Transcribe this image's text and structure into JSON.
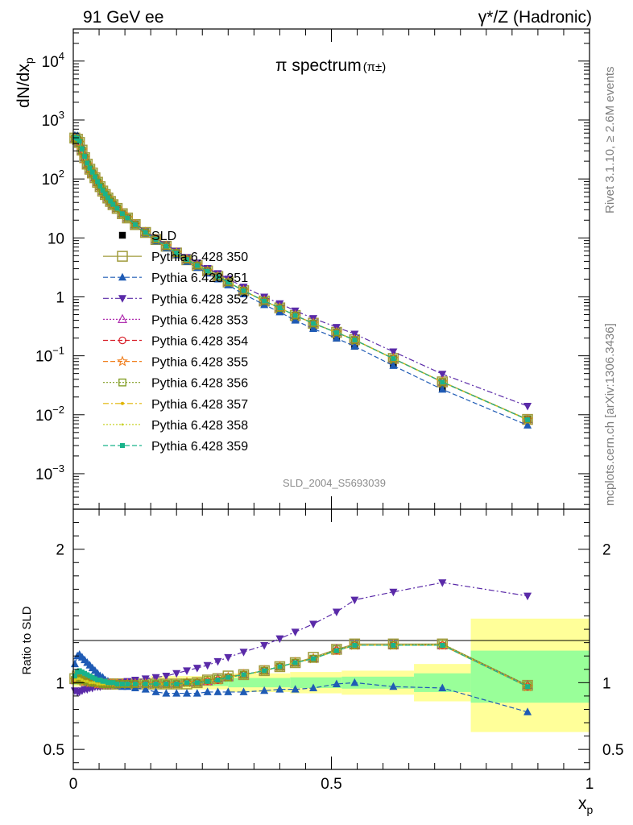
{
  "header": {
    "left": "91 GeV ee",
    "right": "γ*/Z (Hadronic)"
  },
  "side_labels": {
    "rivet": "Rivet 3.1.10, ≥ 2.6M events",
    "mcplots": "mcplots.cern.ch [arXiv:1306.3436]"
  },
  "chart_data": [
    {
      "type": "scatter",
      "title": "π spectrum",
      "title_sub": "(π±)",
      "analysis_label": "SLD_2004_S5693039",
      "ylabel_main": "dN/dx",
      "ylabel_sub": "p",
      "y_scale": "log",
      "ylim": [
        0.00025,
        35000
      ],
      "xlim": [
        0,
        1
      ],
      "y_ticks": [
        {
          "v": 10000,
          "base": "10",
          "exp": "4"
        },
        {
          "v": 1000,
          "base": "10",
          "exp": "3"
        },
        {
          "v": 100,
          "base": "10",
          "exp": "2"
        },
        {
          "v": 10,
          "base": "10",
          "exp": ""
        },
        {
          "v": 1,
          "base": "1",
          "exp": ""
        },
        {
          "v": 0.1,
          "base": "10",
          "exp": "−1"
        },
        {
          "v": 0.01,
          "base": "10",
          "exp": "−2"
        },
        {
          "v": 0.001,
          "base": "10",
          "exp": "−3"
        }
      ],
      "x": [
        0.003,
        0.008,
        0.012,
        0.017,
        0.022,
        0.027,
        0.032,
        0.037,
        0.042,
        0.047,
        0.052,
        0.057,
        0.062,
        0.067,
        0.072,
        0.077,
        0.085,
        0.095,
        0.105,
        0.12,
        0.14,
        0.16,
        0.18,
        0.2,
        0.22,
        0.24,
        0.26,
        0.28,
        0.3,
        0.33,
        0.37,
        0.4,
        0.43,
        0.465,
        0.51,
        0.545,
        0.62,
        0.715,
        0.88
      ],
      "data_y": [
        480,
        450,
        400,
        300,
        225,
        175,
        145,
        125,
        105,
        88,
        74,
        63,
        55,
        48,
        42,
        37,
        32,
        26,
        22,
        17,
        12.5,
        9.5,
        7.3,
        5.6,
        4.3,
        3.4,
        2.7,
        2.15,
        1.7,
        1.2,
        0.78,
        0.58,
        0.42,
        0.3,
        0.2,
        0.145,
        0.07,
        0.028,
        0.0085
      ],
      "series": [
        {
          "name": "SLD",
          "color": "#000000",
          "marker": "square-filled",
          "line": "none",
          "values": [
            480,
            450,
            400,
            300,
            225,
            175,
            145,
            125,
            105,
            88,
            74,
            63,
            55,
            48,
            42,
            37,
            32,
            26,
            22,
            17,
            12.5,
            9.5,
            7.3,
            5.6,
            4.3,
            3.4,
            2.7,
            2.15,
            1.7,
            1.2,
            0.78,
            0.58,
            0.42,
            0.3,
            0.2,
            0.145,
            0.07,
            0.028,
            0.0085
          ]
        },
        {
          "name": "Pythia 6.428 350",
          "color": "#a09b3c",
          "marker": "square-open-large",
          "line": "solid",
          "ratio": [
            1.03,
            1.05,
            1.04,
            1.03,
            1.02,
            1.02,
            1.01,
            1.01,
            1.0,
            1.0,
            1.0,
            0.99,
            0.99,
            0.99,
            0.99,
            0.99,
            0.99,
            0.99,
            0.99,
            0.99,
            0.99,
            0.99,
            0.99,
            0.99,
            0.99,
            1.0,
            1.02,
            1.03,
            1.05,
            1.06,
            1.09,
            1.12,
            1.15,
            1.19,
            1.25,
            1.29,
            1.29,
            1.29,
            0.98
          ]
        },
        {
          "name": "Pythia 6.428 351",
          "color": "#1f5bb5",
          "marker": "triangle-up-filled",
          "line": "dashed",
          "ratio": [
            1.14,
            1.2,
            1.21,
            1.19,
            1.17,
            1.15,
            1.13,
            1.11,
            1.09,
            1.07,
            1.05,
            1.04,
            1.02,
            1.01,
            1.0,
            0.99,
            0.98,
            0.97,
            0.97,
            0.96,
            0.95,
            0.93,
            0.92,
            0.92,
            0.92,
            0.92,
            0.93,
            0.93,
            0.93,
            0.93,
            0.94,
            0.95,
            0.95,
            0.96,
            0.99,
            1.0,
            0.97,
            0.96,
            0.78
          ]
        },
        {
          "name": "Pythia 6.428 352",
          "color": "#5a2aa8",
          "marker": "triangle-down-filled",
          "line": "dashdot",
          "ratio": [
            0.94,
            0.93,
            0.93,
            0.94,
            0.95,
            0.95,
            0.96,
            0.96,
            0.97,
            0.97,
            0.97,
            0.98,
            0.98,
            0.98,
            0.98,
            0.99,
            0.99,
            1.0,
            1.01,
            1.02,
            1.03,
            1.04,
            1.05,
            1.07,
            1.09,
            1.11,
            1.13,
            1.16,
            1.19,
            1.23,
            1.28,
            1.33,
            1.38,
            1.44,
            1.53,
            1.62,
            1.68,
            1.75,
            1.65
          ]
        },
        {
          "name": "Pythia 6.428 353",
          "color": "#b02fb0",
          "marker": "triangle-up-open",
          "line": "dotted",
          "ratio": [
            1.02,
            1.04,
            1.03,
            1.02,
            1.02,
            1.01,
            1.01,
            1.0,
            1.0,
            1.0,
            1.0,
            0.99,
            0.99,
            0.99,
            0.99,
            0.99,
            0.99,
            0.99,
            0.99,
            0.99,
            0.99,
            0.99,
            0.99,
            0.99,
            1.0,
            1.0,
            1.01,
            1.03,
            1.04,
            1.06,
            1.09,
            1.12,
            1.15,
            1.18,
            1.25,
            1.28,
            1.28,
            1.28,
            0.98
          ]
        },
        {
          "name": "Pythia 6.428 354",
          "color": "#d8202a",
          "marker": "circle-open",
          "line": "dashed",
          "ratio": [
            1.02,
            1.03,
            1.03,
            1.02,
            1.01,
            1.01,
            1.0,
            1.0,
            1.0,
            0.99,
            0.99,
            0.99,
            0.99,
            0.99,
            0.99,
            0.99,
            0.99,
            0.99,
            0.99,
            0.99,
            0.99,
            0.99,
            0.99,
            0.99,
            1.0,
            1.0,
            1.01,
            1.02,
            1.04,
            1.06,
            1.09,
            1.12,
            1.15,
            1.18,
            1.24,
            1.28,
            1.28,
            1.28,
            0.97
          ]
        },
        {
          "name": "Pythia 6.428 355",
          "color": "#f07f1e",
          "marker": "star-open",
          "line": "dashed",
          "ratio": [
            1.02,
            1.03,
            1.03,
            1.02,
            1.01,
            1.01,
            1.0,
            1.0,
            1.0,
            0.99,
            0.99,
            0.99,
            0.99,
            0.99,
            0.99,
            0.99,
            0.99,
            0.99,
            0.99,
            0.99,
            0.99,
            0.99,
            0.99,
            0.99,
            1.0,
            1.0,
            1.01,
            1.02,
            1.04,
            1.06,
            1.09,
            1.12,
            1.15,
            1.18,
            1.24,
            1.28,
            1.28,
            1.28,
            0.97
          ]
        },
        {
          "name": "Pythia 6.428 356",
          "color": "#7d9a1c",
          "marker": "square-open",
          "line": "dotted",
          "ratio": [
            1.02,
            1.04,
            1.03,
            1.02,
            1.02,
            1.01,
            1.01,
            1.0,
            1.0,
            1.0,
            1.0,
            0.99,
            0.99,
            0.99,
            0.99,
            0.99,
            0.99,
            0.99,
            0.99,
            0.99,
            0.99,
            0.99,
            0.99,
            0.99,
            1.0,
            1.0,
            1.02,
            1.03,
            1.04,
            1.06,
            1.09,
            1.12,
            1.15,
            1.18,
            1.25,
            1.28,
            1.28,
            1.29,
            0.98
          ]
        },
        {
          "name": "Pythia 6.428 357",
          "color": "#e0b400",
          "marker": "dot",
          "line": "dashdot",
          "ratio": [
            1.02,
            1.03,
            1.03,
            1.02,
            1.01,
            1.01,
            1.0,
            1.0,
            1.0,
            0.99,
            0.99,
            0.99,
            0.99,
            0.99,
            0.99,
            0.99,
            0.99,
            0.99,
            0.99,
            0.99,
            0.99,
            0.99,
            0.99,
            0.99,
            1.0,
            1.0,
            1.01,
            1.02,
            1.04,
            1.06,
            1.09,
            1.12,
            1.15,
            1.18,
            1.24,
            1.28,
            1.28,
            1.28,
            0.97
          ]
        },
        {
          "name": "Pythia 6.428 358",
          "color": "#c8d22a",
          "marker": "dot-small",
          "line": "dotted",
          "ratio": [
            1.02,
            1.03,
            1.03,
            1.02,
            1.01,
            1.01,
            1.0,
            1.0,
            1.0,
            0.99,
            0.99,
            0.99,
            0.99,
            0.99,
            0.99,
            0.99,
            0.99,
            0.99,
            0.99,
            0.99,
            0.99,
            0.99,
            0.99,
            0.99,
            1.0,
            1.0,
            1.01,
            1.02,
            1.04,
            1.06,
            1.09,
            1.12,
            1.15,
            1.18,
            1.24,
            1.28,
            1.28,
            1.28,
            0.97
          ]
        },
        {
          "name": "Pythia 6.428 359",
          "color": "#19b38a",
          "marker": "square-small",
          "line": "dashed",
          "ratio": [
            1.05,
            1.08,
            1.09,
            1.08,
            1.07,
            1.06,
            1.05,
            1.04,
            1.03,
            1.02,
            1.02,
            1.01,
            1.01,
            1.0,
            1.0,
            1.0,
            0.99,
            0.99,
            0.99,
            0.99,
            0.99,
            0.99,
            0.99,
            0.99,
            1.0,
            1.0,
            1.01,
            1.02,
            1.04,
            1.06,
            1.09,
            1.12,
            1.15,
            1.18,
            1.24,
            1.28,
            1.28,
            1.28,
            0.97
          ]
        }
      ]
    },
    {
      "type": "scatter",
      "ylabel": "Ratio to SLD",
      "xlabel_main": "x",
      "xlabel_sub": "p",
      "ylim": [
        0.35,
        2.3
      ],
      "xlim": [
        0,
        1
      ],
      "y_tick_labels": [
        {
          "v": 0.5,
          "label": "0.5"
        },
        {
          "v": 1,
          "label": "1"
        },
        {
          "v": 2,
          "label": "2"
        }
      ],
      "x_tick_labels": [
        {
          "v": 0,
          "label": "0"
        },
        {
          "v": 0.5,
          "label": "0.5"
        },
        {
          "v": 1,
          "label": "1"
        }
      ],
      "uncertainty_bands": [
        {
          "x0": 0.0,
          "x1": 0.15,
          "stat": [
            0.985,
            1.015
          ],
          "total": [
            0.97,
            1.03
          ]
        },
        {
          "x0": 0.15,
          "x1": 0.3,
          "stat": [
            0.975,
            1.025
          ],
          "total": [
            0.95,
            1.05
          ]
        },
        {
          "x0": 0.3,
          "x1": 0.42,
          "stat": [
            0.965,
            1.035
          ],
          "total": [
            0.93,
            1.07
          ]
        },
        {
          "x0": 0.42,
          "x1": 0.52,
          "stat": [
            0.96,
            1.04
          ],
          "total": [
            0.92,
            1.08
          ]
        },
        {
          "x0": 0.52,
          "x1": 0.66,
          "stat": [
            0.955,
            1.045
          ],
          "total": [
            0.91,
            1.09
          ]
        },
        {
          "x0": 0.66,
          "x1": 0.77,
          "stat": [
            0.93,
            1.07
          ],
          "total": [
            0.86,
            1.14
          ]
        },
        {
          "x0": 0.77,
          "x1": 1.0,
          "stat": [
            0.85,
            1.24
          ],
          "total": [
            0.63,
            1.48
          ]
        }
      ]
    }
  ]
}
